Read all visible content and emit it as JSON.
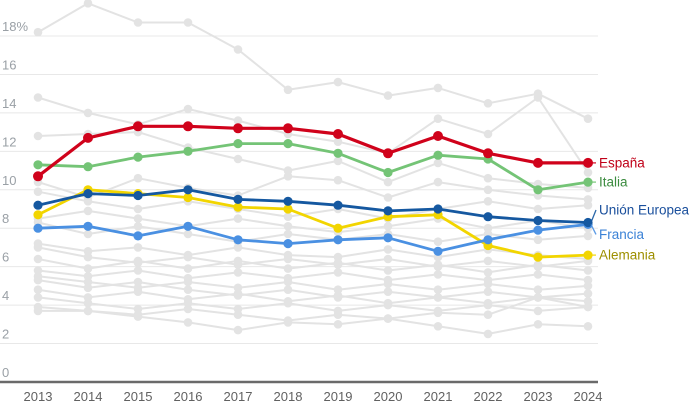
{
  "chart_data": {
    "type": "line",
    "title": "",
    "xlabel": "",
    "ylabel": "",
    "unit": "%",
    "x": [
      2013,
      2014,
      2015,
      2016,
      2017,
      2018,
      2019,
      2020,
      2021,
      2022,
      2023,
      2024
    ],
    "x_labels": [
      "2013",
      "2014",
      "2015",
      "2016",
      "2017",
      "2018",
      "2019",
      "2020",
      "2021",
      "2022",
      "2023",
      "2024"
    ],
    "ylim": [
      0,
      18
    ],
    "grid": true,
    "yticks": [
      {
        "value": 18,
        "label": "18%"
      },
      {
        "value": 16,
        "label": "16"
      },
      {
        "value": 14,
        "label": "14"
      },
      {
        "value": 12,
        "label": "12"
      },
      {
        "value": 10,
        "label": "10"
      },
      {
        "value": 8,
        "label": "8"
      },
      {
        "value": 6,
        "label": "6"
      },
      {
        "value": 4,
        "label": "4"
      },
      {
        "value": 2,
        "label": "2"
      },
      {
        "value": 0,
        "label": "0"
      }
    ],
    "legend_position": "right-end-of-line",
    "series": [
      {
        "name": "España",
        "color": "#d0021b",
        "label_color": "#c00018",
        "highlighted": true,
        "values": [
          10.7,
          12.7,
          13.3,
          13.3,
          13.2,
          13.2,
          12.9,
          11.9,
          12.8,
          11.9,
          11.4,
          11.4
        ]
      },
      {
        "name": "Italia",
        "color": "#74c476",
        "label_color": "#3c8c40",
        "highlighted": true,
        "values": [
          11.3,
          11.2,
          11.7,
          12.0,
          12.4,
          12.4,
          11.9,
          10.9,
          11.8,
          11.6,
          10.0,
          10.4
        ]
      },
      {
        "name": "Unión Europea",
        "color": "#1558a0",
        "label_color": "#1a4f9c",
        "highlighted": true,
        "values": [
          9.2,
          9.8,
          9.7,
          10.0,
          9.5,
          9.4,
          9.2,
          8.9,
          9.0,
          8.6,
          8.4,
          8.3
        ]
      },
      {
        "name": "Francia",
        "color": "#4a90e2",
        "label_color": "#3b82d6",
        "highlighted": true,
        "values": [
          8.0,
          8.1,
          7.6,
          8.1,
          7.4,
          7.2,
          7.4,
          7.5,
          6.8,
          7.4,
          7.9,
          8.2
        ]
      },
      {
        "name": "Alemania",
        "color": "#f2d500",
        "label_color": "#9e8f00",
        "highlighted": true,
        "values": [
          8.7,
          10.0,
          9.8,
          9.6,
          9.1,
          9.0,
          8.0,
          8.6,
          8.7,
          7.1,
          6.5,
          6.6
        ]
      }
    ],
    "background_series": [
      {
        "name": "other-1",
        "values": [
          18.2,
          19.7,
          18.7,
          18.7,
          17.3,
          15.2,
          15.6,
          14.9,
          15.3,
          14.5,
          15.0,
          13.7
        ]
      },
      {
        "name": "other-2",
        "values": [
          14.8,
          14.0,
          13.4,
          14.2,
          13.6,
          12.9,
          12.5,
          11.9,
          13.7,
          12.9,
          14.8,
          10.9
        ]
      },
      {
        "name": "other-3",
        "values": [
          12.8,
          12.9,
          13.0,
          12.2,
          11.6,
          11.0,
          11.5,
          10.4,
          11.4,
          10.6,
          10.3,
          10.1
        ]
      },
      {
        "name": "other-4",
        "values": [
          10.4,
          9.6,
          10.6,
          10.1,
          9.7,
          10.7,
          10.5,
          9.6,
          10.4,
          10.0,
          9.7,
          9.5
        ]
      },
      {
        "name": "other-5",
        "values": [
          9.9,
          9.4,
          9.0,
          9.4,
          9.0,
          8.6,
          9.0,
          8.5,
          9.0,
          9.4,
          9.0,
          9.2
        ]
      },
      {
        "name": "other-6",
        "values": [
          8.5,
          8.9,
          8.5,
          8.1,
          8.5,
          8.1,
          7.8,
          8.1,
          8.5,
          8.0,
          8.4,
          8.0
        ]
      },
      {
        "name": "other-7",
        "values": [
          8.3,
          7.7,
          8.1,
          7.7,
          7.3,
          7.7,
          7.4,
          7.7,
          7.3,
          7.7,
          7.4,
          7.6
        ]
      },
      {
        "name": "other-8",
        "values": [
          7.2,
          6.8,
          7.0,
          6.6,
          7.0,
          6.6,
          6.5,
          6.9,
          6.5,
          6.9,
          6.6,
          6.4
        ]
      },
      {
        "name": "other-9",
        "values": [
          7.0,
          6.5,
          6.2,
          6.5,
          6.1,
          6.4,
          6.1,
          6.4,
          6.0,
          6.3,
          6.0,
          6.3
        ]
      },
      {
        "name": "other-10",
        "values": [
          6.4,
          5.9,
          6.3,
          5.9,
          6.3,
          5.9,
          6.2,
          5.8,
          6.1,
          5.7,
          6.1,
          5.8
        ]
      },
      {
        "name": "other-11",
        "values": [
          5.8,
          5.5,
          5.8,
          5.4,
          5.7,
          5.4,
          5.7,
          5.3,
          5.6,
          5.3,
          5.6,
          5.3
        ]
      },
      {
        "name": "other-12",
        "values": [
          5.5,
          5.2,
          4.9,
          5.2,
          4.9,
          5.2,
          4.8,
          5.1,
          4.8,
          5.1,
          4.8,
          5.0
        ]
      },
      {
        "name": "other-13",
        "values": [
          5.3,
          4.9,
          5.2,
          4.8,
          4.5,
          4.8,
          4.4,
          4.7,
          4.4,
          4.7,
          4.4,
          4.6
        ]
      },
      {
        "name": "other-14",
        "values": [
          4.8,
          4.4,
          4.7,
          4.3,
          4.6,
          4.2,
          4.5,
          4.1,
          4.4,
          4.1,
          4.4,
          4.2
        ]
      },
      {
        "name": "other-15",
        "values": [
          4.4,
          4.1,
          3.8,
          4.1,
          3.8,
          4.1,
          3.7,
          4.0,
          3.7,
          4.0,
          3.7,
          3.9
        ]
      },
      {
        "name": "other-16",
        "values": [
          3.9,
          3.7,
          3.5,
          3.8,
          3.5,
          3.2,
          3.5,
          3.3,
          3.6,
          3.5,
          4.4,
          3.9
        ]
      },
      {
        "name": "other-17",
        "values": [
          3.7,
          3.7,
          3.4,
          3.1,
          2.7,
          3.1,
          3.0,
          3.3,
          2.9,
          2.5,
          3.0,
          2.9
        ]
      }
    ],
    "colors": {
      "background_line": "#e3e3e3",
      "gridline": "#e8e8e8",
      "axis_line": "#6a6a6a",
      "ytick_text": "#9aa0a6",
      "xtick_text": "#616161"
    }
  },
  "legend": {
    "items": [
      {
        "label": "España",
        "color": "#c00018"
      },
      {
        "label": "Italia",
        "color": "#3c8c40"
      },
      {
        "label": "Unión Europea",
        "color": "#1a4f9c"
      },
      {
        "label": "Francia",
        "color": "#3b82d6"
      },
      {
        "label": "Alemania",
        "color": "#9e8f00"
      }
    ]
  }
}
